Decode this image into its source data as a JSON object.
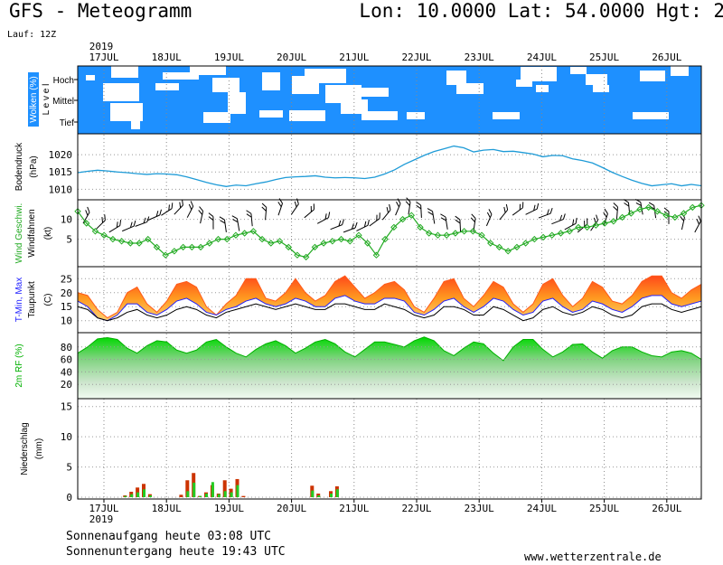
{
  "header": {
    "title": "GFS - Meteogramm",
    "coords": "Lon: 10.0000 Lat: 54.0000 Hgt: 2",
    "run": "Lauf: 12Z"
  },
  "footer": {
    "sunrise": "Sonnenaufgang heute 03:08 UTC",
    "sunset": "Sonnenuntergang heute 19:43 UTC",
    "site": "www.wetterzentrale.de"
  },
  "colors": {
    "sky": "#1e90ff",
    "pressure": "#1e9bd7",
    "wind": "#22aa22",
    "tmax": "#ff2020",
    "tmin": "#2020ff",
    "humidity": "#00b000",
    "precip_rain": "#cc3300",
    "precip_conv": "#22cc22"
  },
  "chart_data": {
    "type": "line",
    "year_label": "2019",
    "days": [
      "17JUL",
      "18JUL",
      "19JUL",
      "20JUL",
      "21JUL",
      "22JUL",
      "23JUL",
      "24JUL",
      "25JUL",
      "26JUL"
    ],
    "clouds": {
      "ylabel": "Wolken (%)",
      "level_label": "L e v e l",
      "levels": [
        "Hoch",
        "Mittel",
        "Tief"
      ]
    },
    "pressure": {
      "ylabel": "Bodendruck",
      "unit": "(hPa)",
      "ticks": [
        1010,
        1015,
        1020
      ],
      "ylim": [
        1008,
        1025
      ],
      "values": [
        1014.8,
        1015.2,
        1015.5,
        1015.3,
        1015.0,
        1014.8,
        1014.5,
        1014.3,
        1014.5,
        1014.4,
        1014.2,
        1013.6,
        1012.8,
        1012.0,
        1011.3,
        1010.8,
        1011.2,
        1011.0,
        1011.6,
        1012.1,
        1012.8,
        1013.4,
        1013.6,
        1013.7,
        1013.9,
        1013.5,
        1013.3,
        1013.4,
        1013.3,
        1013.1,
        1013.5,
        1014.4,
        1015.6,
        1017.2,
        1018.5,
        1019.8,
        1020.9,
        1021.7,
        1022.5,
        1022.0,
        1020.8,
        1021.3,
        1021.5,
        1020.9,
        1021.0,
        1020.6,
        1020.2,
        1019.4,
        1019.8,
        1019.7,
        1018.8,
        1018.3,
        1017.6,
        1016.3,
        1014.9,
        1013.7,
        1012.6,
        1011.7,
        1011.0,
        1011.3,
        1011.6,
        1011.0,
        1011.4,
        1011.0
      ]
    },
    "wind": {
      "ylabel": "Wind Geschwi.",
      "ylabel2": "Windfahnen",
      "unit": "(kt)",
      "ticks": [
        5,
        10
      ],
      "ylim": [
        -1,
        14
      ],
      "values": [
        12,
        9,
        7,
        6,
        5,
        4.5,
        4,
        4,
        5,
        3,
        1,
        2,
        3,
        3,
        3,
        4,
        5,
        5,
        6,
        6.5,
        7,
        5,
        4,
        4.5,
        3,
        1,
        0.5,
        3,
        4,
        4.5,
        5,
        4.5,
        6,
        4,
        1,
        5,
        8,
        10,
        11,
        8,
        6.5,
        6,
        6,
        6.5,
        7,
        7,
        6,
        4,
        3,
        2,
        3,
        4,
        5,
        5.5,
        6,
        6.5,
        7,
        8,
        8,
        8.5,
        9,
        9.5,
        10.5,
        11.5,
        12.5,
        13,
        12,
        11,
        10.5,
        11.5,
        13,
        13.5
      ]
    },
    "temperature": {
      "ylabel": "T-Min, Max",
      "ylabel2": "Taupunkt",
      "unit": "(C)",
      "ticks": [
        10,
        15,
        20,
        25
      ],
      "ylim": [
        7,
        28
      ],
      "tmax": [
        20,
        19,
        14,
        11,
        13,
        20,
        22,
        16,
        13,
        17,
        23,
        24,
        22,
        15,
        12,
        16,
        19,
        25,
        25,
        18,
        17,
        20,
        25,
        20,
        17,
        19,
        24,
        26,
        22,
        18,
        20,
        23,
        24,
        21,
        15,
        13,
        18,
        24,
        25,
        18,
        15,
        19,
        24,
        22,
        16,
        13,
        16,
        23,
        25,
        19,
        15,
        18,
        24,
        22,
        17,
        16,
        19,
        24,
        26,
        26,
        20,
        18,
        21,
        23
      ],
      "tmin": [
        17,
        15,
        11,
        10,
        12,
        16,
        16,
        13,
        12,
        14,
        17,
        18,
        16,
        13,
        12,
        14,
        15,
        17,
        18,
        16,
        15,
        16,
        18,
        17,
        15,
        15,
        18,
        19,
        17,
        16,
        16,
        18,
        18,
        17,
        13,
        12,
        14,
        17,
        18,
        15,
        13,
        15,
        18,
        17,
        14,
        12,
        13,
        17,
        18,
        15,
        13,
        14,
        17,
        16,
        14,
        13,
        15,
        18,
        19,
        19,
        16,
        15,
        16,
        17
      ],
      "dewpoint": [
        15,
        14,
        11,
        10,
        11,
        13,
        14,
        12,
        11,
        12,
        14,
        15,
        14,
        12,
        11,
        13,
        14,
        15,
        16,
        15,
        14,
        15,
        16,
        15,
        14,
        14,
        16,
        16,
        15,
        14,
        14,
        16,
        15,
        14,
        12,
        11,
        12,
        15,
        15,
        14,
        12,
        12,
        15,
        14,
        12,
        10,
        11,
        14,
        15,
        13,
        12,
        13,
        15,
        14,
        12,
        11,
        12,
        15,
        16,
        16,
        14,
        13,
        14,
        15
      ]
    },
    "humidity": {
      "ylabel": "2m RF (%)",
      "ticks": [
        20,
        40,
        60,
        80
      ],
      "ylim": [
        0,
        100
      ],
      "values": [
        70,
        80,
        93,
        95,
        92,
        78,
        70,
        82,
        90,
        88,
        75,
        70,
        75,
        88,
        92,
        80,
        70,
        64,
        76,
        85,
        90,
        82,
        70,
        78,
        88,
        92,
        85,
        72,
        64,
        76,
        88,
        88,
        84,
        80,
        90,
        96,
        90,
        74,
        66,
        78,
        88,
        85,
        70,
        58,
        80,
        92,
        92,
        76,
        64,
        72,
        84,
        85,
        72,
        62,
        74,
        80,
        80,
        72,
        66,
        64,
        72,
        74,
        70,
        60
      ]
    },
    "precipitation": {
      "ylabel": "Niederschlag",
      "unit": "(mm)",
      "ticks": [
        0,
        5,
        10,
        15
      ],
      "ylim": [
        0,
        16
      ],
      "rain": [
        0,
        0,
        0,
        0,
        0,
        0,
        0,
        0.3,
        0.9,
        1.6,
        2.2,
        0.5,
        0,
        0,
        0,
        0,
        0.4,
        2.8,
        4.0,
        0.2,
        0.8,
        2.0,
        0.6,
        2.8,
        1.4,
        3.0,
        0.2,
        0,
        0,
        0,
        0,
        0,
        0,
        0,
        0,
        0,
        0,
        1.9,
        0.6,
        0,
        1.0,
        1.8
      ],
      "convective": [
        0,
        0,
        0,
        0,
        0,
        0,
        0,
        0.2,
        0.5,
        0.8,
        1.3,
        0.3,
        0,
        0,
        0,
        0,
        0,
        1.0,
        2.4,
        0.2,
        0.6,
        2.5,
        0.5,
        1.0,
        0.8,
        2.0,
        0,
        0,
        0,
        0,
        0,
        0,
        0,
        0,
        0,
        0,
        0,
        1.1,
        0.3,
        0,
        0.6,
        1.3
      ]
    }
  }
}
